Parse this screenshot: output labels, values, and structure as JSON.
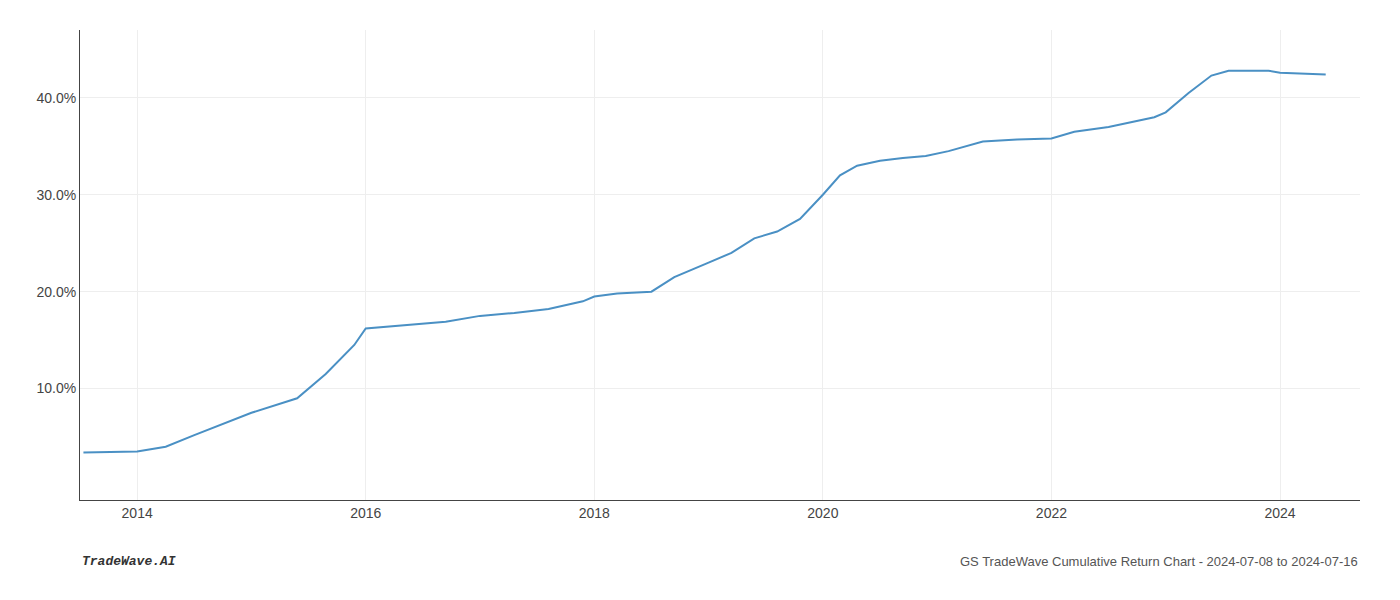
{
  "chart_data": {
    "type": "line",
    "x": [
      2013.53,
      2014.0,
      2014.25,
      2014.5,
      2015.0,
      2015.4,
      2015.65,
      2015.9,
      2016.0,
      2016.1,
      2016.3,
      2016.5,
      2016.7,
      2017.0,
      2017.3,
      2017.6,
      2017.9,
      2018.0,
      2018.2,
      2018.5,
      2018.7,
      2019.0,
      2019.2,
      2019.4,
      2019.6,
      2019.8,
      2020.0,
      2020.15,
      2020.3,
      2020.5,
      2020.7,
      2020.9,
      2021.1,
      2021.4,
      2021.7,
      2022.0,
      2022.2,
      2022.5,
      2022.7,
      2022.9,
      2023.0,
      2023.2,
      2023.4,
      2023.55,
      2023.7,
      2023.9,
      2024.0,
      2024.2,
      2024.4
    ],
    "values": [
      3.4,
      3.5,
      4.0,
      5.2,
      7.5,
      9.0,
      11.5,
      14.5,
      16.2,
      16.3,
      16.5,
      16.7,
      16.9,
      17.5,
      17.8,
      18.2,
      19.0,
      19.5,
      19.8,
      20.0,
      21.5,
      23.0,
      24.0,
      25.5,
      26.2,
      27.5,
      30.0,
      32.0,
      33.0,
      33.5,
      33.8,
      34.0,
      34.5,
      35.5,
      35.7,
      35.8,
      36.5,
      37.0,
      37.5,
      38.0,
      38.5,
      40.5,
      42.3,
      42.8,
      42.8,
      42.8,
      42.6,
      42.5,
      42.4
    ],
    "color": "#4a90c4",
    "xlim": [
      2013.5,
      2024.7
    ],
    "xticks": [
      2014,
      2016,
      2018,
      2020,
      2022,
      2024
    ],
    "ylim": [
      -1.5,
      47
    ],
    "yticks": [
      {
        "value": 10.0,
        "label": "10.0%"
      },
      {
        "value": 20.0,
        "label": "20.0%"
      },
      {
        "value": 30.0,
        "label": "30.0%"
      },
      {
        "value": 40.0,
        "label": "40.0%"
      }
    ],
    "grid": true,
    "annotations": [
      "TradeWave.AI",
      "GS TradeWave Cumulative Return Chart - 2024-07-08 to 2024-07-16"
    ]
  }
}
